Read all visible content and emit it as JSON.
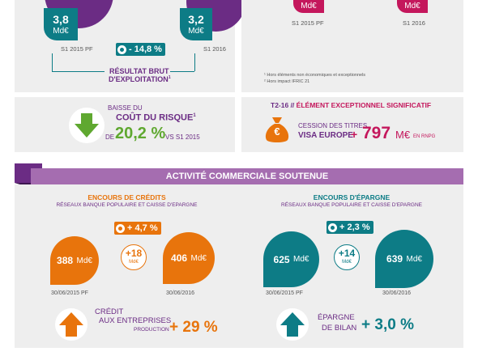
{
  "top": {
    "left_value": "3,8",
    "left_unit": "Md€",
    "right_value": "3,2",
    "right_unit": "Md€",
    "left_period": "S1 2015 PF",
    "right_period": "S1 2016",
    "change": "- 14,8 %",
    "result_line1": "RÉSULTAT BRUT",
    "result_line2": "D'EXPLOITATION",
    "result_sup": "1",
    "pink_left_unit": "Md€",
    "pink_right_unit": "Md€",
    "pink_left_period": "S1 2015 PF",
    "pink_right_period": "S1 2016",
    "note1": "¹ Hors éléments non économiques et exceptionnels",
    "note2": "² Hors impact IFRIC 21"
  },
  "risk": {
    "line1": "BAISSE DU",
    "line2": "COÛT DU RISQUE",
    "sup": "1",
    "prefix": "DE",
    "value": "20,2 %",
    "suffix": "VS S1 2015"
  },
  "exceptional": {
    "title_prefix": "T2-16 //",
    "title": "ÉLÉMENT EXCEPTIONNEL SIGNIFICATIF",
    "line1": "CESSION DES TITRES",
    "line2": "VISA EUROPE",
    "plus": "+",
    "value": "797",
    "unit": "M€",
    "suffix": "EN RNPG",
    "icon_symbol": "€"
  },
  "section": {
    "title": "ACTIVITÉ COMMERCIALE SOUTENUE"
  },
  "credits": {
    "title": "ENCOURS DE CRÉDITS",
    "subtitle": "RÉSEAUX BANQUE POPULAIRE ET CAISSE D'EPARGNE",
    "change": "+ 4,7 %",
    "left_value": "388",
    "left_unit": "Md€",
    "right_value": "406",
    "right_unit": "Md€",
    "delta": "+18",
    "delta_unit": "Md€",
    "left_date": "30/06/2015 PF",
    "right_date": "30/06/2016",
    "bottom_line1": "CRÉDIT",
    "bottom_line2": "AUX ENTREPRISES",
    "bottom_line3": "PRODUCTION",
    "bottom_value": "+ 29 %"
  },
  "savings": {
    "title": "ENCOURS D'ÉPARGNE",
    "subtitle": "RÉSEAUX BANQUE POPULAIRE ET CAISSE D'EPARGNE",
    "change": "+ 2,3 %",
    "left_value": "625",
    "left_unit": "Md€",
    "right_value": "639",
    "right_unit": "Md€",
    "delta": "+14",
    "delta_unit": "Md€",
    "left_date": "30/06/2015 PF",
    "right_date": "30/06/2016",
    "bottom_line1": "ÉPARGNE",
    "bottom_line2": "DE BILAN",
    "bottom_value": "+ 3,0 %"
  },
  "colors": {
    "purple": "#6b2c84",
    "teal": "#0d7c86",
    "orange": "#e8740c",
    "pink": "#c4175c",
    "green": "#5fa830",
    "panel": "#eeeeee",
    "section_bar": "#a56db0"
  },
  "icons": {
    "risk": "arrow-down-icon",
    "money_bag": "money-bag-icon",
    "credit": "arrow-up-icon",
    "savings": "arrow-up-icon"
  }
}
